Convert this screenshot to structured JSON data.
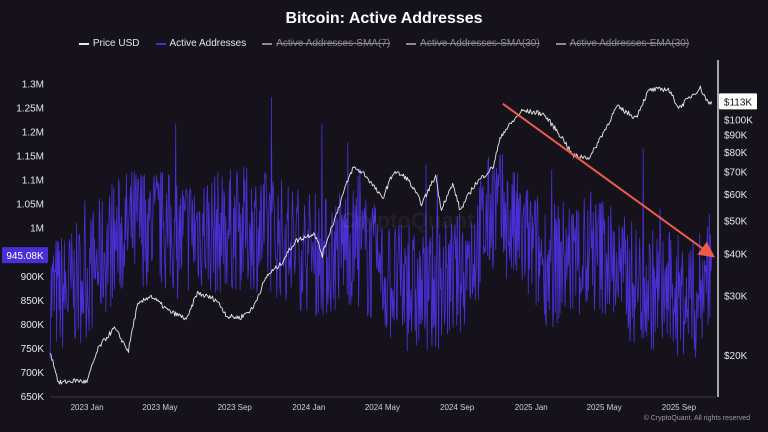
{
  "colors": {
    "price": "#e8e8e8",
    "active": "#4b2fd6",
    "arrow": "#f05a4a",
    "bg": "#15121c",
    "grid": "#2a2633",
    "text": "#e6e6e6"
  },
  "legend": [
    {
      "label": "Price USD",
      "color": "#e8e8e8",
      "enabled": true
    },
    {
      "label": "Active Addresses",
      "color": "#4b2fd6",
      "enabled": true
    },
    {
      "label": "Active Addresses-SMA(7)",
      "color": "#8d8a96",
      "enabled": false
    },
    {
      "label": "Active Addresses-SMA(30)",
      "color": "#8d8a96",
      "enabled": false
    },
    {
      "label": "Active Addresses-EMA(30)",
      "color": "#8d8a96",
      "enabled": false
    }
  ],
  "watermark": "CryptoQuant",
  "credit": "© CryptoQuant. All rights reserved",
  "chart_data": {
    "type": "line",
    "title": "Bitcoin: Active Addresses",
    "legend_position": "top-center",
    "grid": false,
    "x_axis": {
      "type": "date",
      "range": [
        "2022-11-01",
        "2025-11-01"
      ],
      "ticks": [
        {
          "date": "2023-01-01",
          "label": "2023 Jan"
        },
        {
          "date": "2023-05-01",
          "label": "2023 May"
        },
        {
          "date": "2023-09-01",
          "label": "2023 Sep"
        },
        {
          "date": "2024-01-01",
          "label": "2024 Jan"
        },
        {
          "date": "2024-05-01",
          "label": "2024 May"
        },
        {
          "date": "2024-09-01",
          "label": "2024 Sep"
        },
        {
          "date": "2025-01-01",
          "label": "2025 Jan"
        },
        {
          "date": "2025-05-01",
          "label": "2025 May"
        },
        {
          "date": "2025-09-01",
          "label": "2025 Sep"
        }
      ]
    },
    "y_left": {
      "scale": "linear",
      "range": [
        650000,
        1330000
      ],
      "ticks": [
        {
          "value": 1300000,
          "label": "1.3M"
        },
        {
          "value": 1250000,
          "label": "1.25M"
        },
        {
          "value": 1200000,
          "label": "1.2M"
        },
        {
          "value": 1150000,
          "label": "1.15M"
        },
        {
          "value": 1100000,
          "label": "1.1M"
        },
        {
          "value": 1050000,
          "label": "1.05M"
        },
        {
          "value": 1000000,
          "label": "1M"
        },
        {
          "value": 900000,
          "label": "900K"
        },
        {
          "value": 850000,
          "label": "850K"
        },
        {
          "value": 800000,
          "label": "800K"
        },
        {
          "value": 750000,
          "label": "750K"
        },
        {
          "value": 700000,
          "label": "700K"
        },
        {
          "value": 650000,
          "label": "650K"
        }
      ],
      "current": {
        "value": 945080,
        "label": "945.08K"
      }
    },
    "y_right": {
      "scale": "log",
      "range": [
        15000,
        140000
      ],
      "ticks": [
        {
          "value": 100000,
          "label": "$100K"
        },
        {
          "value": 90000,
          "label": "$90K"
        },
        {
          "value": 80000,
          "label": "$80K"
        },
        {
          "value": 70000,
          "label": "$70K"
        },
        {
          "value": 60000,
          "label": "$60K"
        },
        {
          "value": 50000,
          "label": "$50K"
        },
        {
          "value": 40000,
          "label": "$40K"
        },
        {
          "value": 30000,
          "label": "$30K"
        },
        {
          "value": 20000,
          "label": "$20K"
        }
      ],
      "current": {
        "value": 113000,
        "label": "$113K"
      }
    },
    "series": [
      {
        "name": "Active Addresses",
        "axis": "left",
        "points": [
          [
            "2022-11-01",
            860000
          ],
          [
            "2022-12-01",
            870000
          ],
          [
            "2023-01-01",
            900000
          ],
          [
            "2023-02-01",
            950000
          ],
          [
            "2023-03-01",
            990000
          ],
          [
            "2023-04-01",
            1010000
          ],
          [
            "2023-05-01",
            1000000
          ],
          [
            "2023-06-01",
            980000
          ],
          [
            "2023-07-01",
            1000000
          ],
          [
            "2023-08-01",
            990000
          ],
          [
            "2023-09-01",
            1000000
          ],
          [
            "2023-10-01",
            1000000
          ],
          [
            "2023-11-01",
            990000
          ],
          [
            "2023-12-01",
            970000
          ],
          [
            "2024-01-01",
            950000
          ],
          [
            "2024-02-01",
            940000
          ],
          [
            "2024-03-01",
            970000
          ],
          [
            "2024-04-01",
            950000
          ],
          [
            "2024-05-01",
            900000
          ],
          [
            "2024-06-01",
            880000
          ],
          [
            "2024-07-01",
            860000
          ],
          [
            "2024-08-01",
            880000
          ],
          [
            "2024-09-01",
            900000
          ],
          [
            "2024-10-01",
            960000
          ],
          [
            "2024-11-01",
            1050000
          ],
          [
            "2024-12-01",
            1000000
          ],
          [
            "2025-01-01",
            960000
          ],
          [
            "2025-02-01",
            920000
          ],
          [
            "2025-03-01",
            940000
          ],
          [
            "2025-04-01",
            930000
          ],
          [
            "2025-05-01",
            950000
          ],
          [
            "2025-06-01",
            900000
          ],
          [
            "2025-07-01",
            880000
          ],
          [
            "2025-08-01",
            870000
          ],
          [
            "2025-09-01",
            860000
          ],
          [
            "2025-10-01",
            850000
          ],
          [
            "2025-10-25",
            945080
          ]
        ]
      },
      {
        "name": "Price USD",
        "axis": "right",
        "points": [
          [
            "2022-11-01",
            20500
          ],
          [
            "2022-11-15",
            16500
          ],
          [
            "2022-12-15",
            16800
          ],
          [
            "2023-01-01",
            16600
          ],
          [
            "2023-01-20",
            21000
          ],
          [
            "2023-02-15",
            24000
          ],
          [
            "2023-03-10",
            20500
          ],
          [
            "2023-03-25",
            28000
          ],
          [
            "2023-04-15",
            30000
          ],
          [
            "2023-05-15",
            27000
          ],
          [
            "2023-06-15",
            25500
          ],
          [
            "2023-07-01",
            30500
          ],
          [
            "2023-08-01",
            29200
          ],
          [
            "2023-08-20",
            26000
          ],
          [
            "2023-09-10",
            25800
          ],
          [
            "2023-10-01",
            27500
          ],
          [
            "2023-10-25",
            34500
          ],
          [
            "2023-11-15",
            37000
          ],
          [
            "2023-12-10",
            43500
          ],
          [
            "2024-01-10",
            46000
          ],
          [
            "2024-01-23",
            39500
          ],
          [
            "2024-02-15",
            52000
          ],
          [
            "2024-03-14",
            72000
          ],
          [
            "2024-04-01",
            69000
          ],
          [
            "2024-05-01",
            58000
          ],
          [
            "2024-05-20",
            70000
          ],
          [
            "2024-06-10",
            67000
          ],
          [
            "2024-07-05",
            56000
          ],
          [
            "2024-07-28",
            68000
          ],
          [
            "2024-08-05",
            54000
          ],
          [
            "2024-08-25",
            64000
          ],
          [
            "2024-09-06",
            53500
          ],
          [
            "2024-09-30",
            64000
          ],
          [
            "2024-10-30",
            72000
          ],
          [
            "2024-11-13",
            90000
          ],
          [
            "2024-12-05",
            100000
          ],
          [
            "2024-12-17",
            106000
          ],
          [
            "2025-01-20",
            104000
          ],
          [
            "2025-02-25",
            86000
          ],
          [
            "2025-03-10",
            78000
          ],
          [
            "2025-04-08",
            77000
          ],
          [
            "2025-05-05",
            95000
          ],
          [
            "2025-05-22",
            109000
          ],
          [
            "2025-06-22",
            101000
          ],
          [
            "2025-07-14",
            122000
          ],
          [
            "2025-08-14",
            123000
          ],
          [
            "2025-09-01",
            108000
          ],
          [
            "2025-10-06",
            124000
          ],
          [
            "2025-10-20",
            111000
          ],
          [
            "2025-10-25",
            113000
          ]
        ]
      }
    ],
    "annotations": [
      {
        "type": "arrow",
        "color": "#f05a4a",
        "axis": "left",
        "from": [
          "2024-11-15",
          1260000
        ],
        "to": [
          "2025-10-25",
          945000
        ]
      }
    ]
  }
}
